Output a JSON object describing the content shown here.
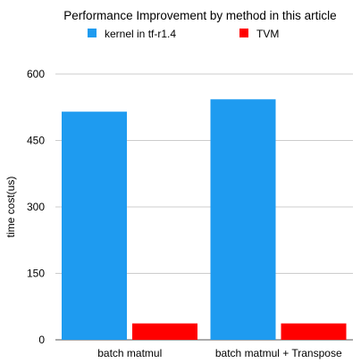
{
  "chart_data": {
    "type": "bar",
    "title": "Performance Improvement by method in this article",
    "xlabel": "",
    "ylabel": "time cost(us)",
    "categories": [
      "batch matmul",
      "batch matmul + Transpose"
    ],
    "series": [
      {
        "name": "kernel in tf-r1.4",
        "color": "#1e9bf0",
        "values": [
          515,
          543
        ]
      },
      {
        "name": "TVM",
        "color": "#ff0000",
        "values": [
          37,
          37
        ]
      }
    ],
    "ylim": [
      0,
      600
    ],
    "yticks": [
      "0",
      "150",
      "300",
      "450",
      "600"
    ],
    "grid": true,
    "legend_position": "top"
  }
}
